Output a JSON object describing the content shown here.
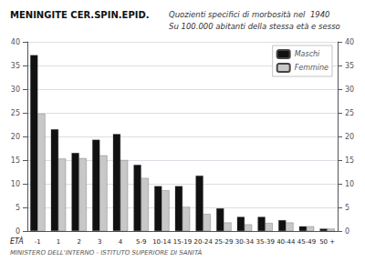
{
  "chart_data": {
    "type": "bar",
    "title": "MENINGITE CER.SPIN.EPID.",
    "subtitle": [
      "Quozienti specifici di morbosità nel  1940",
      "Su 100.000 abitanti della stessa età e sesso"
    ],
    "annotations": [
      "MINISTERO DELL'INTERNO - ISTITUTO SUPERIORE DI SANITÀ"
    ],
    "xlabel": "ETÀ",
    "categories": [
      "-1",
      "1",
      "2",
      "3",
      "4",
      "5-9",
      "10-14",
      "15-19",
      "20-24",
      "25-29",
      "30-34",
      "35-39",
      "40-44",
      "45-49",
      "50 +"
    ],
    "series": [
      {
        "name": "Maschi",
        "color": "#111111",
        "values": [
          37.2,
          21.5,
          16.5,
          19.3,
          20.5,
          14.0,
          9.5,
          9.5,
          11.7,
          4.8,
          3.0,
          3.0,
          2.3,
          1.0,
          0.5
        ]
      },
      {
        "name": "Femmine",
        "color": "#c8c8c8",
        "values": [
          24.8,
          15.3,
          15.4,
          16.0,
          15.0,
          11.2,
          8.6,
          5.1,
          3.6,
          1.8,
          1.4,
          1.7,
          1.8,
          1.0,
          0.5
        ]
      }
    ],
    "ylim": [
      0,
      40
    ],
    "yticks": [
      0,
      5,
      10,
      15,
      20,
      25,
      30,
      35,
      40
    ],
    "y2lim": [
      0,
      40
    ],
    "y2ticks": [
      0,
      5,
      10,
      15,
      20,
      25,
      30,
      35,
      40
    ],
    "grid": true,
    "legend": "upper right"
  }
}
